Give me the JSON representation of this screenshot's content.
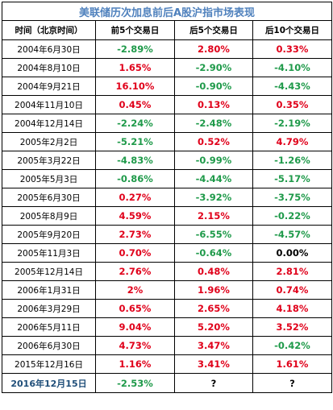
{
  "title": "美联储历次加息前后A股沪指市场表现",
  "headers": {
    "date": "时间（北京时间）",
    "before5": "前5个交易日",
    "after5": "后5个交易日",
    "after10": "后10个交易日"
  },
  "colors": {
    "title": "#4f81bd",
    "up": "#e0001a",
    "down": "#1f9a4a",
    "last_date": "#1f4e79"
  },
  "rows": [
    {
      "date": "2004年6月30日",
      "before5": "-2.89%",
      "after5": "2.80%",
      "after10": "0.33%"
    },
    {
      "date": "2004年8月10日",
      "before5": "1.65%",
      "after5": "-2.90%",
      "after10": "-4.10%"
    },
    {
      "date": "2004年9月21日",
      "before5": "16.10%",
      "after5": "-0.90%",
      "after10": "-4.43%"
    },
    {
      "date": "2004年11月10日",
      "before5": "0.45%",
      "after5": "0.13%",
      "after10": "0.35%"
    },
    {
      "date": "2004年12月14日",
      "before5": "-2.24%",
      "after5": "-2.48%",
      "after10": "-2.19%"
    },
    {
      "date": "2005年2月2日",
      "before5": "-5.21%",
      "after5": "0.52%",
      "after10": "4.79%"
    },
    {
      "date": "2005年3月22日",
      "before5": "-4.83%",
      "after5": "-0.99%",
      "after10": "-1.26%"
    },
    {
      "date": "2005年5月3日",
      "before5": "-0.86%",
      "after5": "-4.44%",
      "after10": "-5.17%"
    },
    {
      "date": "2005年6月30日",
      "before5": "0.27%",
      "after5": "-3.92%",
      "after10": "-3.75%"
    },
    {
      "date": "2005年8月9日",
      "before5": "4.59%",
      "after5": "2.15%",
      "after10": "-0.22%"
    },
    {
      "date": "2005年9月20日",
      "before5": "2.73%",
      "after5": "-6.55%",
      "after10": "-4.57%"
    },
    {
      "date": "2005年11月3日",
      "before5": "0.70%",
      "after5": "-0.64%",
      "after10": "0.00%"
    },
    {
      "date": "2005年12月14日",
      "before5": "2.76%",
      "after5": "0.48%",
      "after10": "2.81%"
    },
    {
      "date": "2006年1月31日",
      "before5": "2%",
      "after5": "1.96%",
      "after10": "0.74%"
    },
    {
      "date": "2006年3月29日",
      "before5": "0.65%",
      "after5": "2.65%",
      "after10": "4.18%"
    },
    {
      "date": "2006年5月11日",
      "before5": "9.04%",
      "after5": "5.20%",
      "after10": "3.52%"
    },
    {
      "date": "2006年6月30日",
      "before5": "4.73%",
      "after5": "3.47%",
      "after10": "-0.42%"
    },
    {
      "date": "2015年12月16日",
      "before5": "1.16%",
      "after5": "3.41%",
      "after10": "1.61%"
    }
  ],
  "last_row": {
    "date": "2016年12月15日",
    "before5": "-2.53%",
    "after5": "?",
    "after10": "?"
  }
}
